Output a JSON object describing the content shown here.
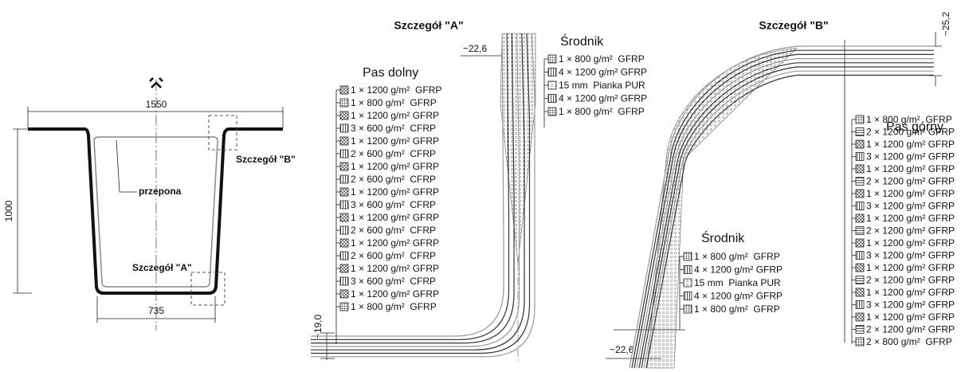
{
  "overview": {
    "dim_width": "1550",
    "dim_height": "1000",
    "dim_bottom": "735",
    "diaphragm": "przepona",
    "detail_a_ref": "Szczegół \"A\"",
    "detail_b_ref": "Szczegół \"B\""
  },
  "detail_a": {
    "title": "Szczegół \"A\"",
    "web_thickness": "~22,6",
    "flange_thickness": "~19,0",
    "flange": {
      "title": "Pas dolny",
      "layers": [
        "1 × 1200 g/m²  GFRP",
        "1 × 800 g/m²  GFRP",
        "1 × 1200 g/m² GFRP",
        "3 × 600 g/m²  CFRP",
        "1 × 1200 g/m² GFRP",
        "2 × 600 g/m²  CFRP",
        "1 × 1200 g/m² GFRP",
        "2 × 600 g/m²  CFRP",
        "1 × 1200 g/m² GFRP",
        "3 × 600 g/m²  CFRP",
        "1 × 1200 g/m² GFRP",
        "2 × 600 g/m²  CFRP",
        "1 × 1200 g/m² GFRP",
        "2 × 600 g/m²  CFRP",
        "1 × 1200 g/m² GFRP",
        "3 × 600 g/m²  CFRP",
        "1 × 1200 g/m² GFRP",
        "1 × 800 g/m²  GFRP"
      ]
    },
    "web": {
      "title": "Środnik",
      "layers": [
        "1 × 800 g/m²  GFRP",
        "4 × 1200 g/m² GFRP",
        "15 mm  Pianka PUR",
        "4 × 1200 g/m² GFRP",
        "1 × 800 g/m²  GFRP"
      ]
    }
  },
  "detail_b": {
    "title": "Szczegół \"B\"",
    "flange_thickness": "~25,2",
    "web_thickness": "~22,6",
    "web": {
      "title": "Środnik",
      "layers": [
        "1 × 800 g/m²  GFRP",
        "4 × 1200 g/m² GFRP",
        "15 mm  Pianka PUR",
        "4 × 1200 g/m² GFRP",
        "1 × 800 g/m²  GFRP"
      ]
    },
    "flange": {
      "title": "Pas górny",
      "layers": [
        "1 × 800 g/m²  GFRP",
        "2 × 1200 g/m² GFRP",
        "1 × 1200 g/m² GFRP",
        "3 × 1200 g/m² GFRP",
        "1 × 1200 g/m² GFRP",
        "2 × 1200 g/m² GFRP",
        "1 × 1200 g/m² GFRP",
        "3 × 1200 g/m² GFRP",
        "1 × 1200 g/m² GFRP",
        "2 × 1200 g/m² GFRP",
        "1 × 1200 g/m² GFRP",
        "3 × 1200 g/m² GFRP",
        "1 × 1200 g/m² GFRP",
        "2 × 1200 g/m² GFRP",
        "1 × 1200 g/m² GFRP",
        "3 × 1200 g/m² GFRP",
        "1 × 1200 g/m² GFRP",
        "2 × 1200 g/m² GFRP",
        "2 × 800 g/m²  GFRP"
      ]
    }
  }
}
